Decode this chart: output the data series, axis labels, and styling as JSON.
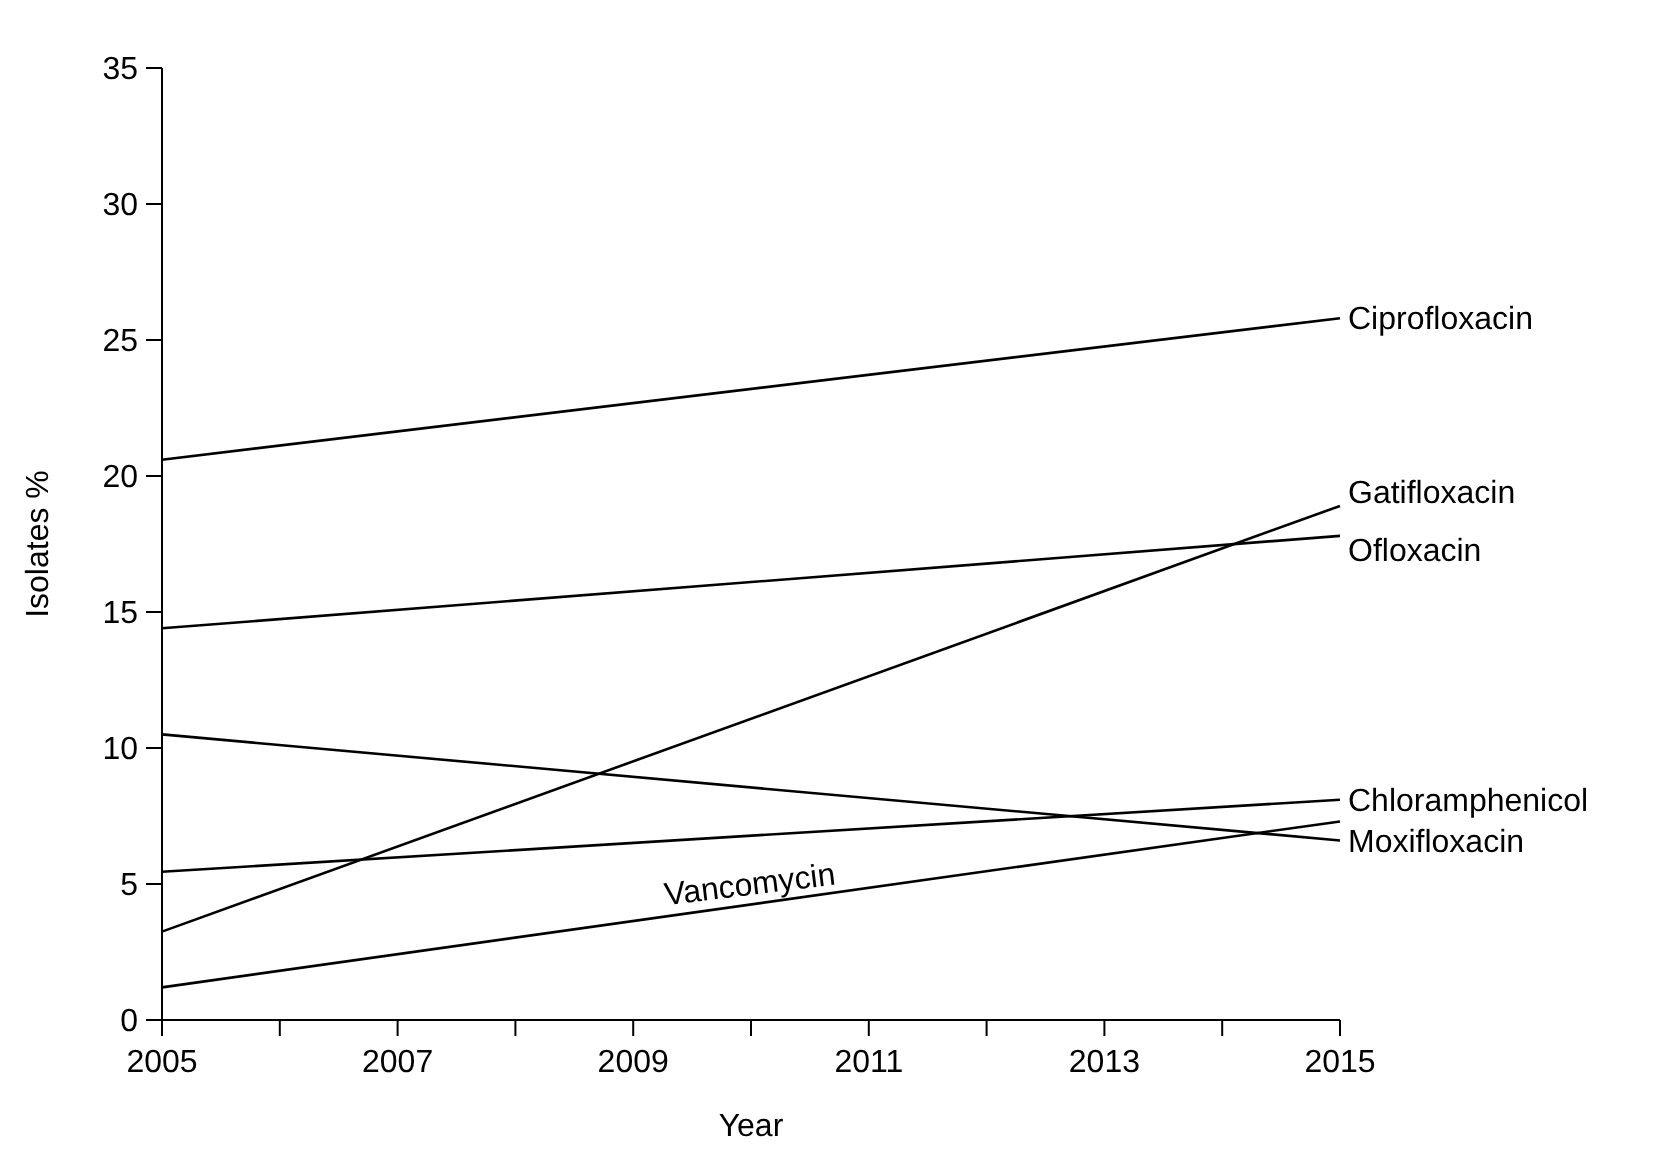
{
  "chart_data": {
    "type": "line",
    "xlabel": "Year",
    "ylabel": "Isolates %",
    "x": [
      2005,
      2015
    ],
    "xlim": [
      2005,
      2015
    ],
    "xticks": [
      2005,
      {
        "value": 2006,
        "label": null
      },
      2007,
      {
        "value": 2008,
        "label": null
      },
      2009,
      {
        "value": 2010,
        "label": null
      },
      2011,
      {
        "value": 2012,
        "label": null
      },
      2013,
      {
        "value": 2014,
        "label": null
      },
      2015
    ],
    "ylim": [
      0,
      35
    ],
    "yticks": [
      0,
      5,
      10,
      15,
      20,
      25,
      30,
      35
    ],
    "grid": false,
    "line_style": "solid",
    "series": [
      {
        "name": "Ciprofloxacin",
        "color": "#000000",
        "values": [
          20.6,
          25.8
        ]
      },
      {
        "name": "Gatifloxacin",
        "color": "#000000",
        "values": [
          3.25,
          18.9
        ]
      },
      {
        "name": "Ofloxacin",
        "color": "#000000",
        "values": [
          14.4,
          17.8
        ]
      },
      {
        "name": "Chloramphenicol",
        "color": "#000000",
        "values": [
          5.45,
          8.1
        ]
      },
      {
        "name": "Moxifloxacin",
        "color": "#000000",
        "values": [
          10.5,
          6.6
        ]
      },
      {
        "color": "#000000",
        "values": [
          1.2,
          7.3
        ]
      }
    ],
    "annotations": [
      {
        "text": "Vancomycin",
        "x": 2010,
        "y": 4.6
      }
    ]
  }
}
